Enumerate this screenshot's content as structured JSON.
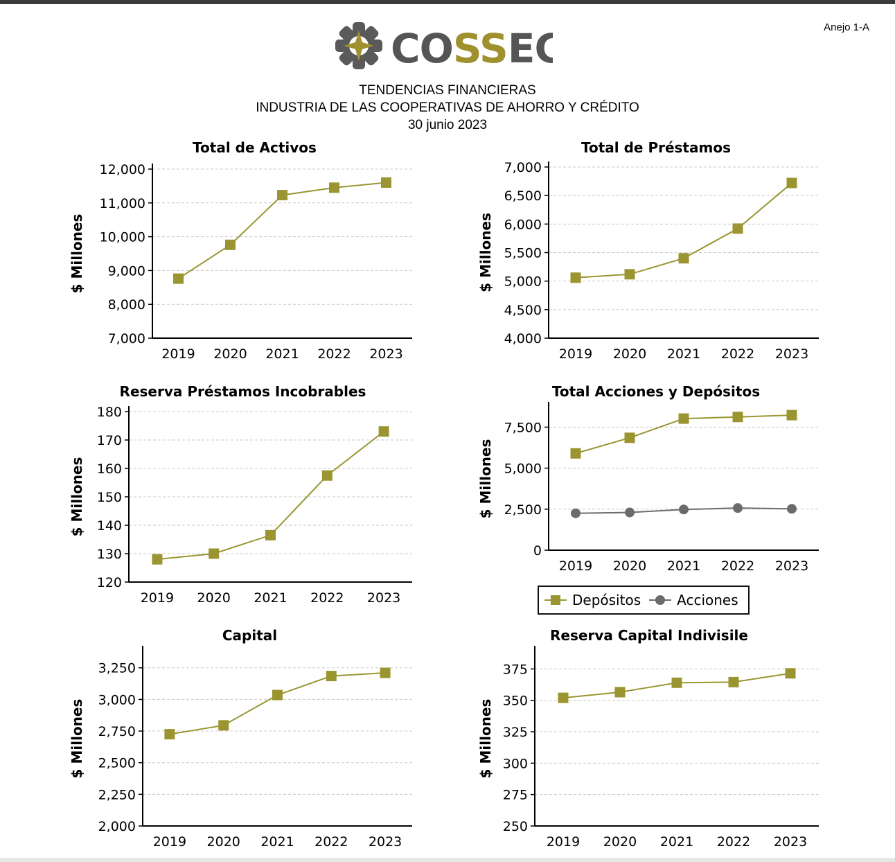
{
  "annex_label": "Anejo 1-A",
  "logo_text": "COSSEC",
  "header": {
    "line1": "TENDENCIAS FINANCIERAS",
    "line2": "INDUSTRIA DE LAS COOPERATIVAS DE AHORRO Y CRÉDITO",
    "line3": "30 junio 2023"
  },
  "colors": {
    "primary": "#9a9530",
    "secondary": "#6b6b6b",
    "grid": "#c8c8c8"
  },
  "legend": {
    "series1": "Depósitos",
    "series2": "Acciones"
  },
  "chart_data": [
    {
      "type": "line",
      "title": "Total de Activos",
      "ylabel": "$ Millones",
      "categories": [
        "2019",
        "2020",
        "2021",
        "2022",
        "2023"
      ],
      "series": [
        {
          "values": [
            8760,
            9760,
            11230,
            11450,
            11600
          ]
        }
      ],
      "ylim": [
        7000,
        12000
      ],
      "yticks": [
        7000,
        8000,
        9000,
        10000,
        11000,
        12000
      ],
      "yticklabels": [
        "7,000",
        "8,000",
        "9,000",
        "10,000",
        "11,000",
        "12,000"
      ],
      "grid": true
    },
    {
      "type": "line",
      "title": "Total de Préstamos",
      "ylabel": "$ Millones",
      "categories": [
        "2019",
        "2020",
        "2021",
        "2022",
        "2023"
      ],
      "series": [
        {
          "values": [
            5060,
            5120,
            5400,
            5920,
            6720
          ]
        }
      ],
      "ylim": [
        4000,
        7000
      ],
      "yticks": [
        4000,
        4500,
        5000,
        5500,
        6000,
        6500,
        7000
      ],
      "yticklabels": [
        "4,000",
        "4,500",
        "5,000",
        "5,500",
        "6,000",
        "6,500",
        "7,000"
      ],
      "grid": true
    },
    {
      "type": "line",
      "title": "Reserva Préstamos Incobrables",
      "ylabel": "$ Millones",
      "categories": [
        "2019",
        "2020",
        "2021",
        "2022",
        "2023"
      ],
      "series": [
        {
          "values": [
            128,
            130,
            136.5,
            157.5,
            173
          ]
        }
      ],
      "ylim": [
        120,
        180
      ],
      "yticks": [
        120,
        130,
        140,
        150,
        160,
        170,
        180
      ],
      "yticklabels": [
        "120",
        "130",
        "140",
        "150",
        "160",
        "170",
        "180"
      ],
      "grid": true
    },
    {
      "type": "line",
      "title": "Total Acciones y Depósitos",
      "ylabel": "$ Millones",
      "categories": [
        "2019",
        "2020",
        "2021",
        "2022",
        "2023"
      ],
      "series": [
        {
          "name": "Depósitos",
          "values": [
            5900,
            6850,
            8020,
            8120,
            8230
          ]
        },
        {
          "name": "Acciones",
          "values": [
            2250,
            2300,
            2480,
            2570,
            2520
          ]
        }
      ],
      "ylim": [
        0,
        8700
      ],
      "yticks": [
        0,
        2500,
        5000,
        7500
      ],
      "yticklabels": [
        "0",
        "2,500",
        "5,000",
        "7,500"
      ],
      "legend": "bottom-center",
      "grid": true
    },
    {
      "type": "line",
      "title": "Capital",
      "ylabel": "$ Millones",
      "categories": [
        "2019",
        "2020",
        "2021",
        "2022",
        "2023"
      ],
      "series": [
        {
          "values": [
            2725,
            2795,
            3035,
            3185,
            3210
          ]
        }
      ],
      "ylim": [
        2000,
        3380
      ],
      "yticks": [
        2000,
        2250,
        2500,
        2750,
        3000,
        3250
      ],
      "yticklabels": [
        "2,000",
        "2,250",
        "2,500",
        "2,750",
        "3,000",
        "3,250"
      ],
      "grid": true
    },
    {
      "type": "line",
      "title": "Reserva Capital Indivisile",
      "ylabel": "$ Millones",
      "categories": [
        "2019",
        "2020",
        "2021",
        "2022",
        "2023"
      ],
      "series": [
        {
          "values": [
            352,
            356.5,
            364,
            364.5,
            371.5
          ]
        }
      ],
      "ylim": [
        250,
        389
      ],
      "yticks": [
        250,
        275,
        300,
        325,
        350,
        375
      ],
      "yticklabels": [
        "250",
        "275",
        "300",
        "325",
        "350",
        "375"
      ],
      "grid": true
    }
  ]
}
